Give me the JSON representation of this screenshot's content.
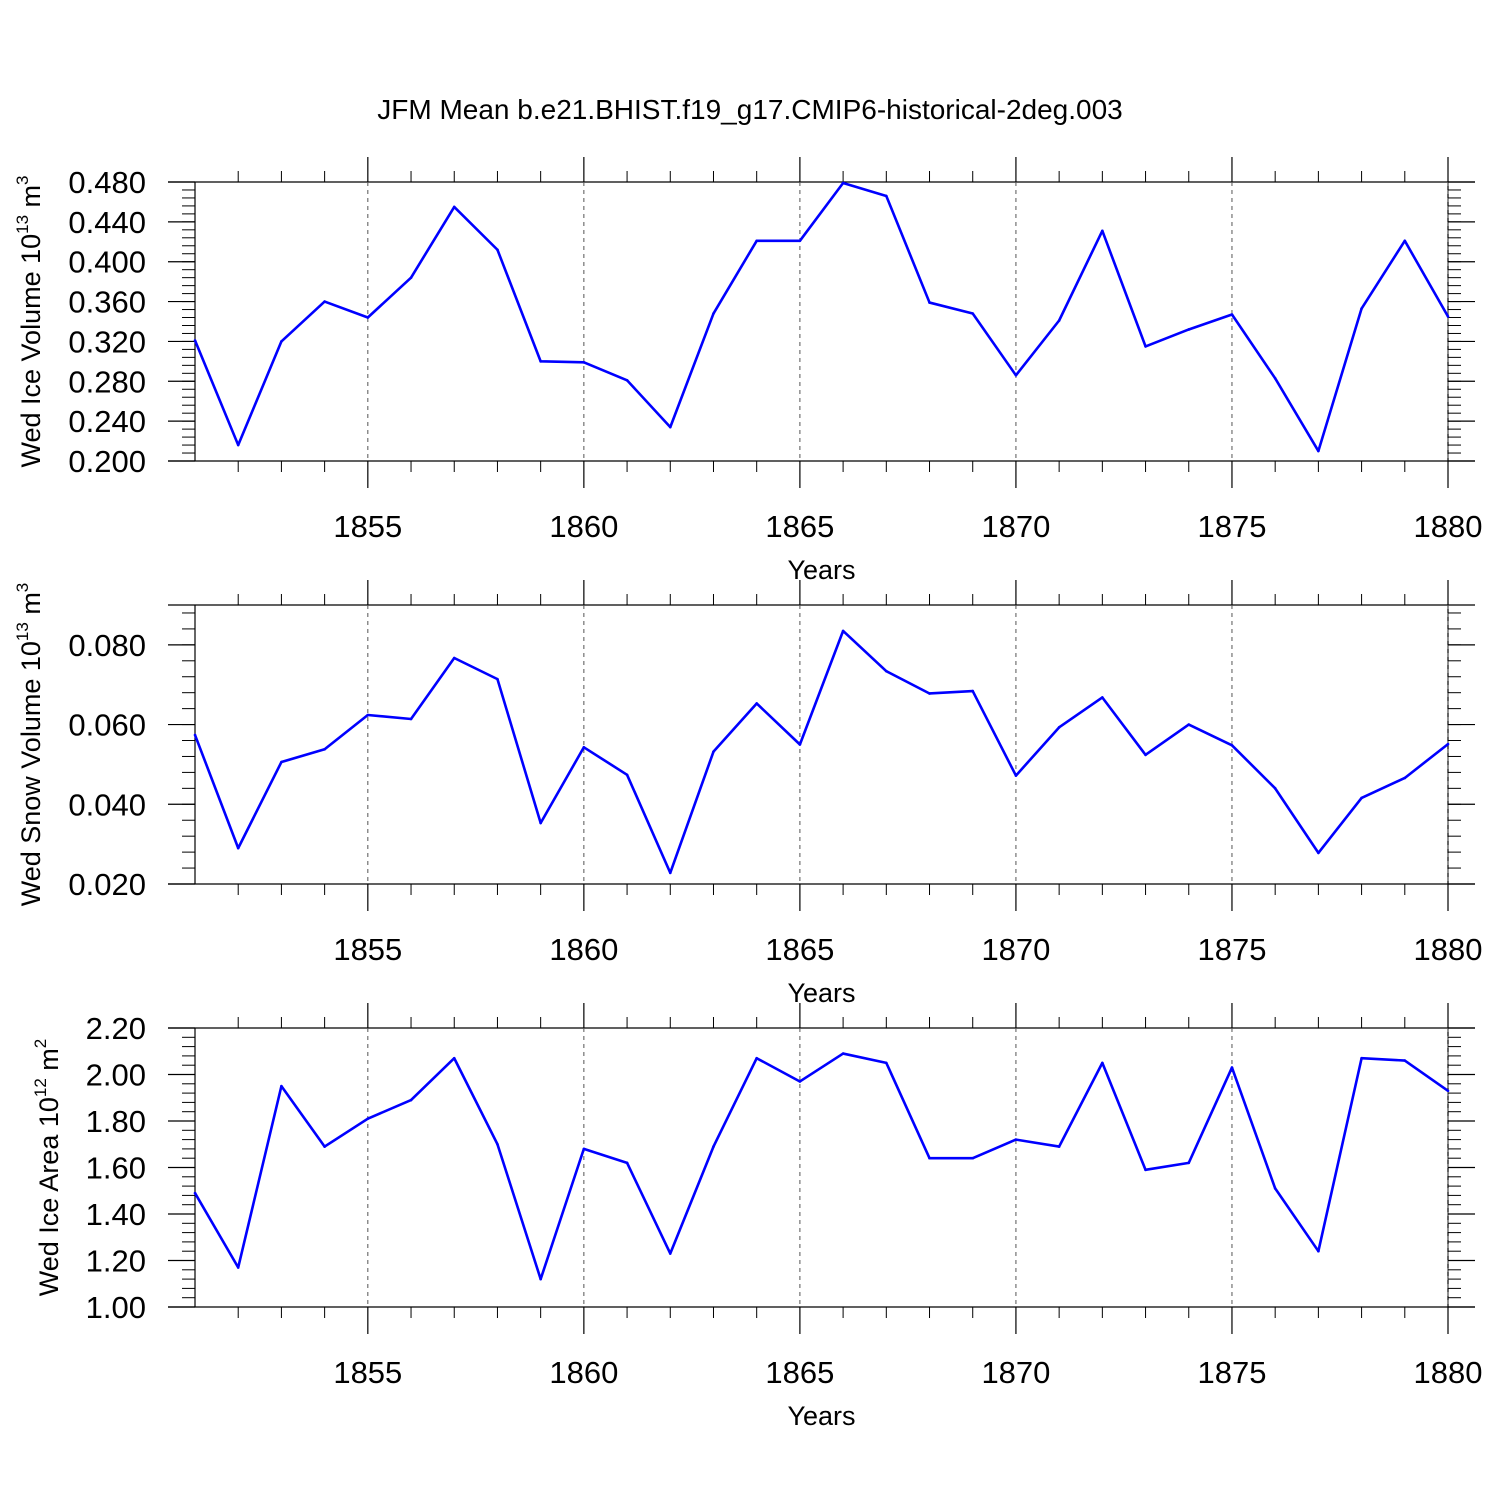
{
  "title": "JFM Mean b.e21.BHIST.f19_g17.CMIP6-historical-2deg.003",
  "chart_data": [
    {
      "type": "line",
      "ylabel": "Wed Ice Volume 10",
      "ylabel_exp": "13",
      "ylabel_unit": "m",
      "ylabel_unit_exp": "3",
      "xlabel": "Years",
      "xlim": [
        1851,
        1880
      ],
      "ylim": [
        0.2,
        0.48
      ],
      "yticks": [
        0.2,
        0.24,
        0.28,
        0.32,
        0.36,
        0.4,
        0.44,
        0.48
      ],
      "ytick_labels": [
        "0.200",
        "0.240",
        "0.280",
        "0.320",
        "0.360",
        "0.400",
        "0.440",
        "0.480"
      ],
      "xticks": [
        1855,
        1860,
        1865,
        1870,
        1875,
        1880
      ],
      "xtick_labels": [
        "1855",
        "1860",
        "1865",
        "1870",
        "1875",
        "1880"
      ],
      "grid": "vertical dashed at major x ticks",
      "color": "#0000ff",
      "x": [
        1851,
        1852,
        1853,
        1854,
        1855,
        1856,
        1857,
        1858,
        1859,
        1860,
        1861,
        1862,
        1863,
        1864,
        1865,
        1866,
        1867,
        1868,
        1869,
        1870,
        1871,
        1872,
        1873,
        1874,
        1875,
        1876,
        1877,
        1878,
        1879,
        1880
      ],
      "values": [
        0.321,
        0.216,
        0.32,
        0.36,
        0.344,
        0.384,
        0.455,
        0.412,
        0.3,
        0.299,
        0.281,
        0.234,
        0.348,
        0.421,
        0.421,
        0.479,
        0.466,
        0.359,
        0.348,
        0.286,
        0.341,
        0.431,
        0.315,
        0.332,
        0.347,
        0.283,
        0.21,
        0.353,
        0.421,
        0.345
      ]
    },
    {
      "type": "line",
      "ylabel": "Wed Snow Volume 10",
      "ylabel_exp": "13",
      "ylabel_unit": "m",
      "ylabel_unit_exp": "3",
      "xlabel": "Years",
      "xlim": [
        1851,
        1880
      ],
      "ylim": [
        0.02,
        0.09
      ],
      "yticks": [
        0.02,
        0.04,
        0.06,
        0.08
      ],
      "ytick_labels": [
        "0.020",
        "0.040",
        "0.060",
        "0.080"
      ],
      "xticks": [
        1855,
        1860,
        1865,
        1870,
        1875,
        1880
      ],
      "xtick_labels": [
        "1855",
        "1860",
        "1865",
        "1870",
        "1875",
        "1880"
      ],
      "grid": "vertical dashed at major x ticks",
      "color": "#0000ff",
      "x": [
        1851,
        1852,
        1853,
        1854,
        1855,
        1856,
        1857,
        1858,
        1859,
        1860,
        1861,
        1862,
        1863,
        1864,
        1865,
        1866,
        1867,
        1868,
        1869,
        1870,
        1871,
        1872,
        1873,
        1874,
        1875,
        1876,
        1877,
        1878,
        1879,
        1880
      ],
      "values": [
        0.0574,
        0.029,
        0.0506,
        0.0538,
        0.0624,
        0.0614,
        0.0767,
        0.0714,
        0.0353,
        0.0543,
        0.0474,
        0.0228,
        0.0532,
        0.0653,
        0.055,
        0.0835,
        0.0734,
        0.0678,
        0.0684,
        0.0472,
        0.0593,
        0.0668,
        0.0524,
        0.06,
        0.0548,
        0.044,
        0.0278,
        0.0416,
        0.0466,
        0.0551
      ]
    },
    {
      "type": "line",
      "ylabel": "Wed Ice Area 10",
      "ylabel_exp": "12",
      "ylabel_unit": "m",
      "ylabel_unit_exp": "2",
      "xlabel": "Years",
      "xlim": [
        1851,
        1880
      ],
      "ylim": [
        1.0,
        2.2
      ],
      "yticks": [
        1.0,
        1.2,
        1.4,
        1.6,
        1.8,
        2.0,
        2.2
      ],
      "ytick_labels": [
        "1.00",
        "1.20",
        "1.40",
        "1.60",
        "1.80",
        "2.00",
        "2.20"
      ],
      "xticks": [
        1855,
        1860,
        1865,
        1870,
        1875,
        1880
      ],
      "xtick_labels": [
        "1855",
        "1860",
        "1865",
        "1870",
        "1875",
        "1880"
      ],
      "grid": "vertical dashed at major x ticks",
      "color": "#0000ff",
      "x": [
        1851,
        1852,
        1853,
        1854,
        1855,
        1856,
        1857,
        1858,
        1859,
        1860,
        1861,
        1862,
        1863,
        1864,
        1865,
        1866,
        1867,
        1868,
        1869,
        1870,
        1871,
        1872,
        1873,
        1874,
        1875,
        1876,
        1877,
        1878,
        1879,
        1880
      ],
      "values": [
        1.49,
        1.17,
        1.95,
        1.69,
        1.81,
        1.89,
        2.07,
        1.7,
        1.12,
        1.68,
        1.62,
        1.23,
        1.69,
        2.07,
        1.97,
        2.09,
        2.05,
        1.64,
        1.64,
        1.72,
        1.69,
        2.05,
        1.59,
        1.62,
        2.03,
        1.51,
        1.24,
        2.07,
        2.06,
        1.93
      ]
    }
  ]
}
